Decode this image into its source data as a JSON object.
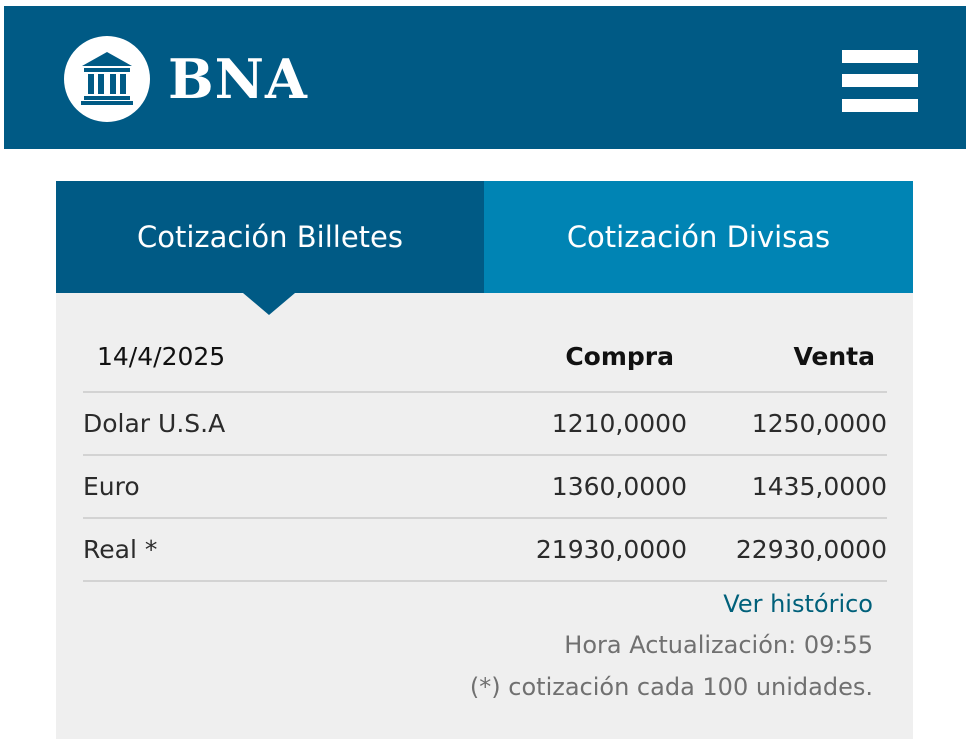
{
  "header": {
    "brand": "BNA",
    "logo_icon": "bank-building-icon",
    "menu_icon": "hamburger-menu-icon",
    "colors": {
      "header_bg": "#005a85",
      "tab_active": "#005a85",
      "tab_inactive": "#0084b4"
    }
  },
  "tabs": [
    {
      "label": "Cotización Billetes",
      "active": true
    },
    {
      "label": "Cotización Divisas",
      "active": false
    }
  ],
  "table": {
    "date": "14/4/2025",
    "col_compra": "Compra",
    "col_venta": "Venta",
    "rows": [
      {
        "name": "Dolar U.S.A",
        "compra": "1210,0000",
        "venta": "1250,0000"
      },
      {
        "name": "Euro",
        "compra": "1360,0000",
        "venta": "1435,0000"
      },
      {
        "name": "Real *",
        "compra": "21930,0000",
        "venta": "22930,0000"
      }
    ]
  },
  "footer": {
    "link": "Ver histórico",
    "update_time": "Hora Actualización: 09:55",
    "note": "(*) cotización cada 100 unidades."
  }
}
